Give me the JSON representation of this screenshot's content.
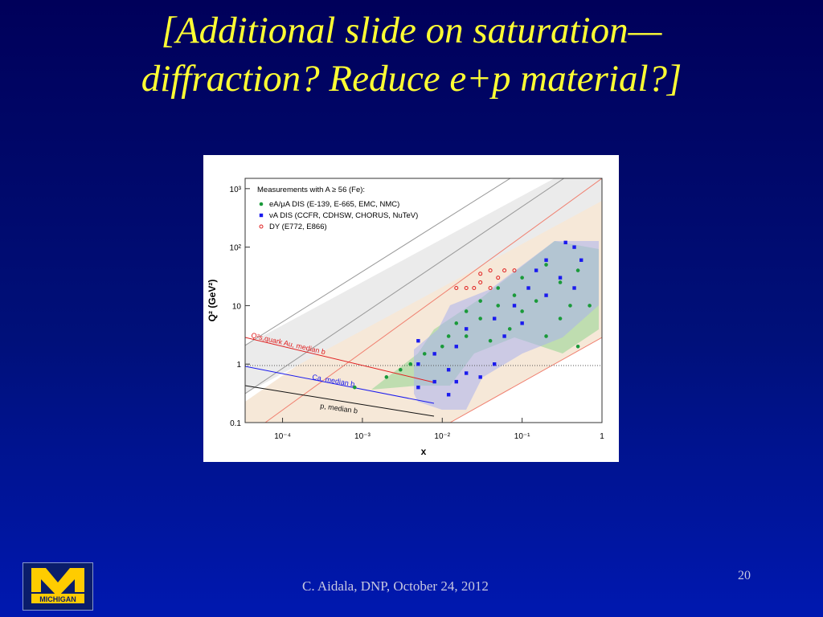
{
  "slide": {
    "title_lines": [
      "[Additional slide on saturation—",
      "diffraction?  Reduce e+p material?]"
    ],
    "footer": "C. Aidala, DNP, October 24, 2012",
    "page_number": "20",
    "logo_text": "MICHIGAN"
  },
  "chart_data": {
    "type": "scatter",
    "xlabel": "x",
    "ylabel": "Q² (GeV²)",
    "log_x": true,
    "log_y": true,
    "legend_title": "Measurements with A ≥ 56 (Fe):",
    "xlim": [
      3.4e-05,
      1
    ],
    "ylim": [
      0.1,
      1500
    ],
    "xticks": [
      {
        "value": 0.0001,
        "label": "10⁻⁴"
      },
      {
        "value": 0.001,
        "label": "10⁻³"
      },
      {
        "value": 0.01,
        "label": "10⁻²"
      },
      {
        "value": 0.1,
        "label": "10⁻¹"
      },
      1
    ],
    "yticks": [
      0.1,
      1,
      10,
      {
        "value": 100,
        "label": "10²"
      },
      {
        "value": 1000,
        "label": "10³"
      }
    ],
    "annotations": [
      "Q²s,quark Au, median b",
      "Ca, median b",
      "p, median b"
    ],
    "series": [
      {
        "name": "eA/μA DIS (E-139, E-665, EMC, NMC)",
        "color": "#1a9a3a",
        "marker": "dot",
        "x": [
          0.0008,
          0.002,
          0.003,
          0.004,
          0.006,
          0.01,
          0.012,
          0.015,
          0.02,
          0.02,
          0.03,
          0.03,
          0.04,
          0.05,
          0.05,
          0.07,
          0.08,
          0.1,
          0.1,
          0.15,
          0.2,
          0.2,
          0.3,
          0.3,
          0.4,
          0.5,
          0.7,
          0.5
        ],
        "values": [
          0.4,
          0.6,
          0.8,
          1,
          1.5,
          2,
          3,
          5,
          3,
          8,
          6,
          12,
          2.5,
          10,
          20,
          4,
          15,
          8,
          30,
          12,
          50,
          3,
          25,
          6,
          10,
          40,
          10,
          2
        ]
      },
      {
        "name": "νA DIS (CCFR, CDHSW, CHORUS, NuTeV)",
        "color": "#1a1aee",
        "marker": "square",
        "x": [
          0.005,
          0.005,
          0.005,
          0.008,
          0.008,
          0.012,
          0.012,
          0.015,
          0.015,
          0.02,
          0.02,
          0.03,
          0.045,
          0.045,
          0.06,
          0.08,
          0.1,
          0.12,
          0.15,
          0.2,
          0.2,
          0.3,
          0.35,
          0.45,
          0.45,
          0.55
        ],
        "values": [
          0.4,
          1,
          2.5,
          0.5,
          1.5,
          0.3,
          0.8,
          0.5,
          2,
          0.7,
          4,
          0.6,
          1,
          6,
          3,
          10,
          5,
          20,
          40,
          15,
          60,
          30,
          120,
          100,
          20,
          60
        ]
      },
      {
        "name": "DY (E772, E866)",
        "color": "#e02020",
        "marker": "ring",
        "x": [
          0.015,
          0.02,
          0.025,
          0.03,
          0.03,
          0.04,
          0.05,
          0.06,
          0.08,
          0.04
        ],
        "values": [
          20,
          20,
          20,
          25,
          35,
          40,
          30,
          40,
          40,
          20
        ]
      }
    ]
  }
}
